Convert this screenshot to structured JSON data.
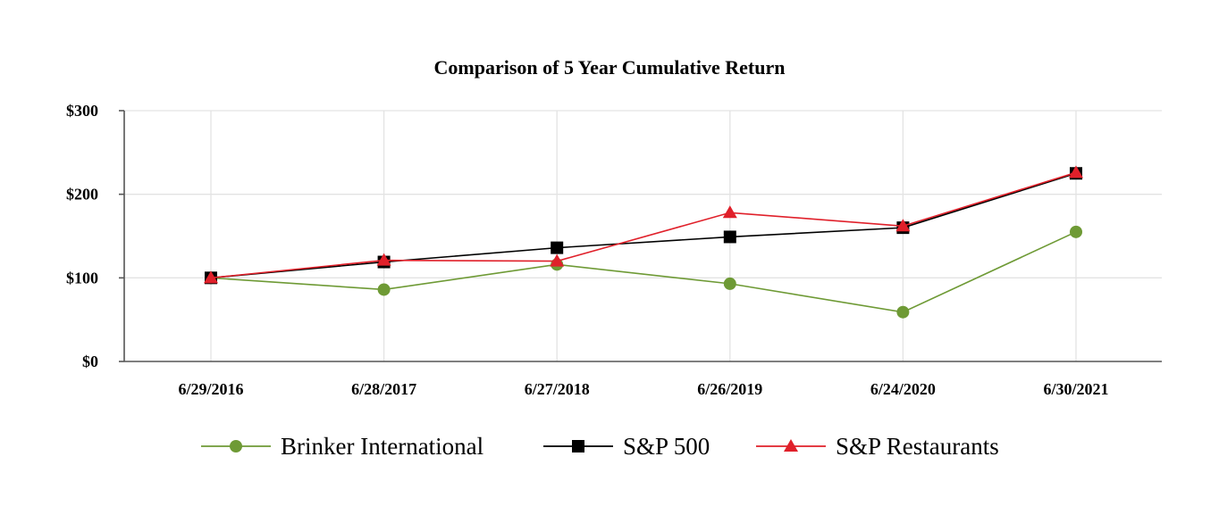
{
  "chart_data": {
    "type": "line",
    "title": "Comparison of 5 Year Cumulative Return",
    "xlabel": "",
    "ylabel": "",
    "categories": [
      "6/29/2016",
      "6/28/2017",
      "6/27/2018",
      "6/26/2019",
      "6/24/2020",
      "6/30/2021"
    ],
    "ylim": [
      0,
      300
    ],
    "yticks": [
      0,
      100,
      200,
      300
    ],
    "ytick_labels": [
      "$0",
      "$100",
      "$200",
      "$300"
    ],
    "grid": true,
    "legend": "bottom",
    "series": [
      {
        "name": "Brinker International",
        "marker": "circle",
        "color": "#6e9a35",
        "values": [
          100,
          86,
          116,
          93,
          59,
          155
        ]
      },
      {
        "name": "S&P 500",
        "marker": "square",
        "color": "#000000",
        "values": [
          100,
          119,
          136,
          149,
          160,
          225
        ]
      },
      {
        "name": "S&P Restaurants",
        "marker": "triangle",
        "color": "#e0202a",
        "values": [
          100,
          121,
          120,
          178,
          162,
          226
        ]
      }
    ]
  }
}
